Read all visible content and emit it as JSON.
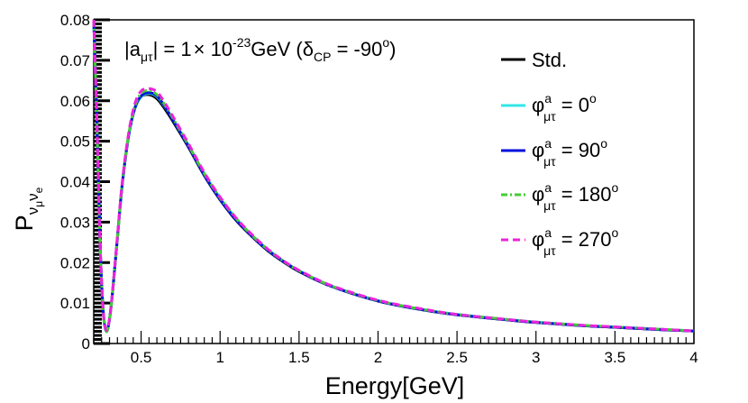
{
  "chart_data": {
    "type": "line",
    "title": "",
    "annotation": {
      "prefix": "|a",
      "sub1": "μτ",
      "mid": "| = 1",
      "times": "×",
      "base": " 10",
      "exp": "-23",
      "unit": "GeV (δ",
      "sub2": "CP",
      "suffix": " = -90",
      "deg": "o",
      "close": ")"
    },
    "xlabel": "Energy[GeV]",
    "ylabel": {
      "main": "P",
      "sub1": "ν",
      "subsub1": "μ",
      "sub2": "ν",
      "subsub2": "e"
    },
    "xlim": [
      0.2,
      4.0
    ],
    "ylim": [
      0,
      0.08
    ],
    "xticks": [
      0.5,
      1,
      1.5,
      2,
      2.5,
      3,
      3.5,
      4
    ],
    "xtick_labels": [
      "0.5",
      "1",
      "1.5",
      "2",
      "2.5",
      "3",
      "3.5",
      "4"
    ],
    "yticks": [
      0,
      0.01,
      0.02,
      0.03,
      0.04,
      0.05,
      0.06,
      0.07,
      0.08
    ],
    "ytick_labels": [
      "0",
      "0.01",
      "0.02",
      "0.03",
      "0.04",
      "0.05",
      "0.06",
      "0.07",
      "0.08"
    ],
    "x": [
      0.2,
      0.22,
      0.24,
      0.26,
      0.28,
      0.3,
      0.32,
      0.35,
      0.38,
      0.42,
      0.46,
      0.5,
      0.55,
      0.6,
      0.65,
      0.7,
      0.8,
      0.9,
      1.0,
      1.1,
      1.2,
      1.3,
      1.4,
      1.5,
      1.7,
      2.0,
      2.3,
      2.5,
      2.8,
      3.0,
      3.3,
      3.5,
      3.8,
      4.0
    ],
    "series": [
      {
        "name": "Std.",
        "legend": {
          "text": "Std."
        },
        "color": "#000000",
        "dash": "",
        "width": 3,
        "values": [
          0.08,
          0.055,
          0.025,
          0.008,
          0.003,
          0.006,
          0.013,
          0.026,
          0.039,
          0.051,
          0.058,
          0.061,
          0.0615,
          0.0605,
          0.058,
          0.055,
          0.0485,
          0.0415,
          0.0355,
          0.0305,
          0.0265,
          0.023,
          0.0202,
          0.0178,
          0.0142,
          0.0105,
          0.0082,
          0.0071,
          0.0059,
          0.0052,
          0.0044,
          0.004,
          0.0034,
          0.0031
        ]
      },
      {
        "name": "phi = 0",
        "legend": {
          "main": "φ",
          "sup": "a",
          "sub": "μτ",
          "rest": " = 0",
          "deg": "o"
        },
        "color": "#33e6e6",
        "dash": "",
        "width": 3,
        "values": [
          0.08,
          0.055,
          0.025,
          0.008,
          0.003,
          0.006,
          0.013,
          0.026,
          0.039,
          0.051,
          0.058,
          0.061,
          0.0618,
          0.061,
          0.0585,
          0.0555,
          0.049,
          0.042,
          0.036,
          0.031,
          0.0268,
          0.0233,
          0.0204,
          0.018,
          0.0143,
          0.0106,
          0.0083,
          0.0072,
          0.006,
          0.0053,
          0.0045,
          0.0041,
          0.0035,
          0.0031
        ]
      },
      {
        "name": "phi = 90",
        "legend": {
          "main": "φ",
          "sup": "a",
          "sub": "μτ",
          "rest": " = 90",
          "deg": "o"
        },
        "color": "#0011dd",
        "dash": "",
        "width": 3,
        "values": [
          0.08,
          0.055,
          0.025,
          0.008,
          0.0032,
          0.006,
          0.013,
          0.0262,
          0.0392,
          0.0512,
          0.0582,
          0.0612,
          0.062,
          0.0612,
          0.0586,
          0.0553,
          0.0487,
          0.0416,
          0.0356,
          0.0306,
          0.0266,
          0.0231,
          0.0203,
          0.0179,
          0.0142,
          0.0105,
          0.0082,
          0.0071,
          0.0059,
          0.0052,
          0.0044,
          0.004,
          0.0034,
          0.0031
        ]
      },
      {
        "name": "phi = 180",
        "legend": {
          "main": "φ",
          "sup": "a",
          "sub": "μτ",
          "rest": " = 180",
          "deg": "o"
        },
        "color": "#44cc33",
        "dash": "7 3 2 3",
        "width": 3,
        "values": [
          0.08,
          0.055,
          0.025,
          0.008,
          0.003,
          0.006,
          0.013,
          0.026,
          0.0392,
          0.0513,
          0.0585,
          0.0618,
          0.0625,
          0.0615,
          0.059,
          0.0558,
          0.049,
          0.042,
          0.036,
          0.031,
          0.0268,
          0.0233,
          0.0204,
          0.018,
          0.0143,
          0.0106,
          0.0083,
          0.0072,
          0.006,
          0.0053,
          0.0045,
          0.0041,
          0.0035,
          0.0031
        ]
      },
      {
        "name": "phi = 270",
        "legend": {
          "main": "φ",
          "sup": "a",
          "sub": "μτ",
          "rest": " = 270",
          "deg": "o"
        },
        "color": "#ee22dd",
        "dash": "8 5",
        "width": 3,
        "values": [
          0.08,
          0.055,
          0.025,
          0.008,
          0.0033,
          0.0062,
          0.0133,
          0.0265,
          0.0397,
          0.0518,
          0.0592,
          0.0624,
          0.063,
          0.0622,
          0.0595,
          0.0562,
          0.0494,
          0.0423,
          0.0362,
          0.0311,
          0.027,
          0.0234,
          0.0205,
          0.0181,
          0.0144,
          0.0107,
          0.0084,
          0.0072,
          0.006,
          0.0053,
          0.0045,
          0.0041,
          0.0035,
          0.0031
        ]
      }
    ]
  }
}
